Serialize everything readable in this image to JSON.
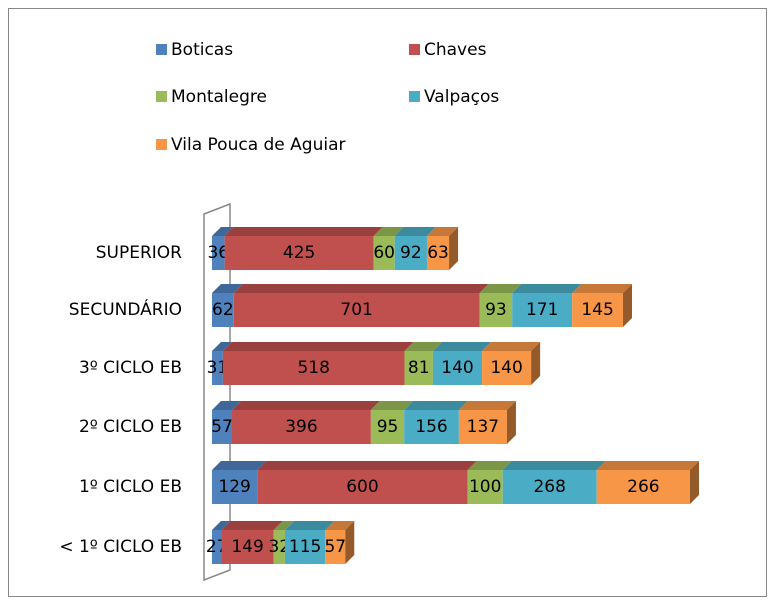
{
  "chart_data": {
    "type": "bar",
    "orientation": "horizontal",
    "stacked": true,
    "three_d": true,
    "categories": [
      "SUPERIOR",
      "SECUNDÁRIO",
      "3º CICLO EB",
      "2º CICLO EB",
      "1º CICLO EB",
      "< 1º CICLO EB"
    ],
    "series": [
      {
        "name": "Boticas",
        "color": "#4f81bd",
        "values": [
          36,
          62,
          31,
          57,
          129,
          27
        ]
      },
      {
        "name": "Chaves",
        "color": "#c0504d",
        "values": [
          425,
          701,
          518,
          396,
          600,
          149
        ]
      },
      {
        "name": "Montalegre",
        "color": "#9bbb59",
        "values": [
          60,
          93,
          81,
          95,
          100,
          32
        ]
      },
      {
        "name": "Valpaços",
        "color": "#4bacc6",
        "values": [
          92,
          171,
          140,
          156,
          268,
          115
        ]
      },
      {
        "name": "Vila Pouca de Aguiar",
        "color": "#f79646",
        "values": [
          63,
          145,
          140,
          137,
          266,
          57
        ]
      }
    ],
    "legend": "top"
  }
}
